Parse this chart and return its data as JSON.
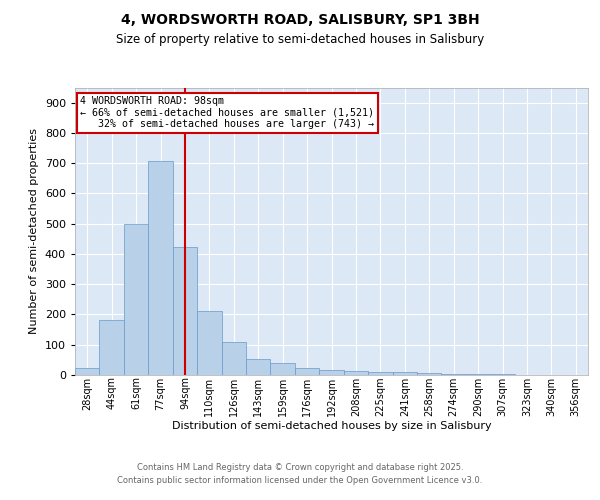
{
  "title_line1": "4, WORDSWORTH ROAD, SALISBURY, SP1 3BH",
  "title_line2": "Size of property relative to semi-detached houses in Salisbury",
  "xlabel": "Distribution of semi-detached houses by size in Salisbury",
  "ylabel": "Number of semi-detached properties",
  "categories": [
    "28sqm",
    "44sqm",
    "61sqm",
    "77sqm",
    "94sqm",
    "110sqm",
    "126sqm",
    "143sqm",
    "159sqm",
    "176sqm",
    "192sqm",
    "208sqm",
    "225sqm",
    "241sqm",
    "258sqm",
    "274sqm",
    "290sqm",
    "307sqm",
    "323sqm",
    "340sqm",
    "356sqm"
  ],
  "values": [
    22,
    182,
    498,
    707,
    422,
    213,
    110,
    52,
    40,
    22,
    18,
    14,
    10,
    10,
    8,
    4,
    3,
    2,
    1,
    0,
    0
  ],
  "bar_color": "#b8d0e8",
  "bar_edge_color": "#6699cc",
  "background_color": "#dce8f5",
  "grid_color": "#ffffff",
  "property_x": "94sqm",
  "property_label": "4 WORDSWORTH ROAD: 98sqm",
  "pct_smaller": "66% of semi-detached houses are smaller (1,521)",
  "pct_larger": "32% of semi-detached houses are larger (743)",
  "vline_color": "#cc0000",
  "annotation_box_color": "#cc0000",
  "ylim": [
    0,
    950
  ],
  "yticks": [
    0,
    100,
    200,
    300,
    400,
    500,
    600,
    700,
    800,
    900
  ],
  "footer_line1": "Contains HM Land Registry data © Crown copyright and database right 2025.",
  "footer_line2": "Contains public sector information licensed under the Open Government Licence v3.0."
}
